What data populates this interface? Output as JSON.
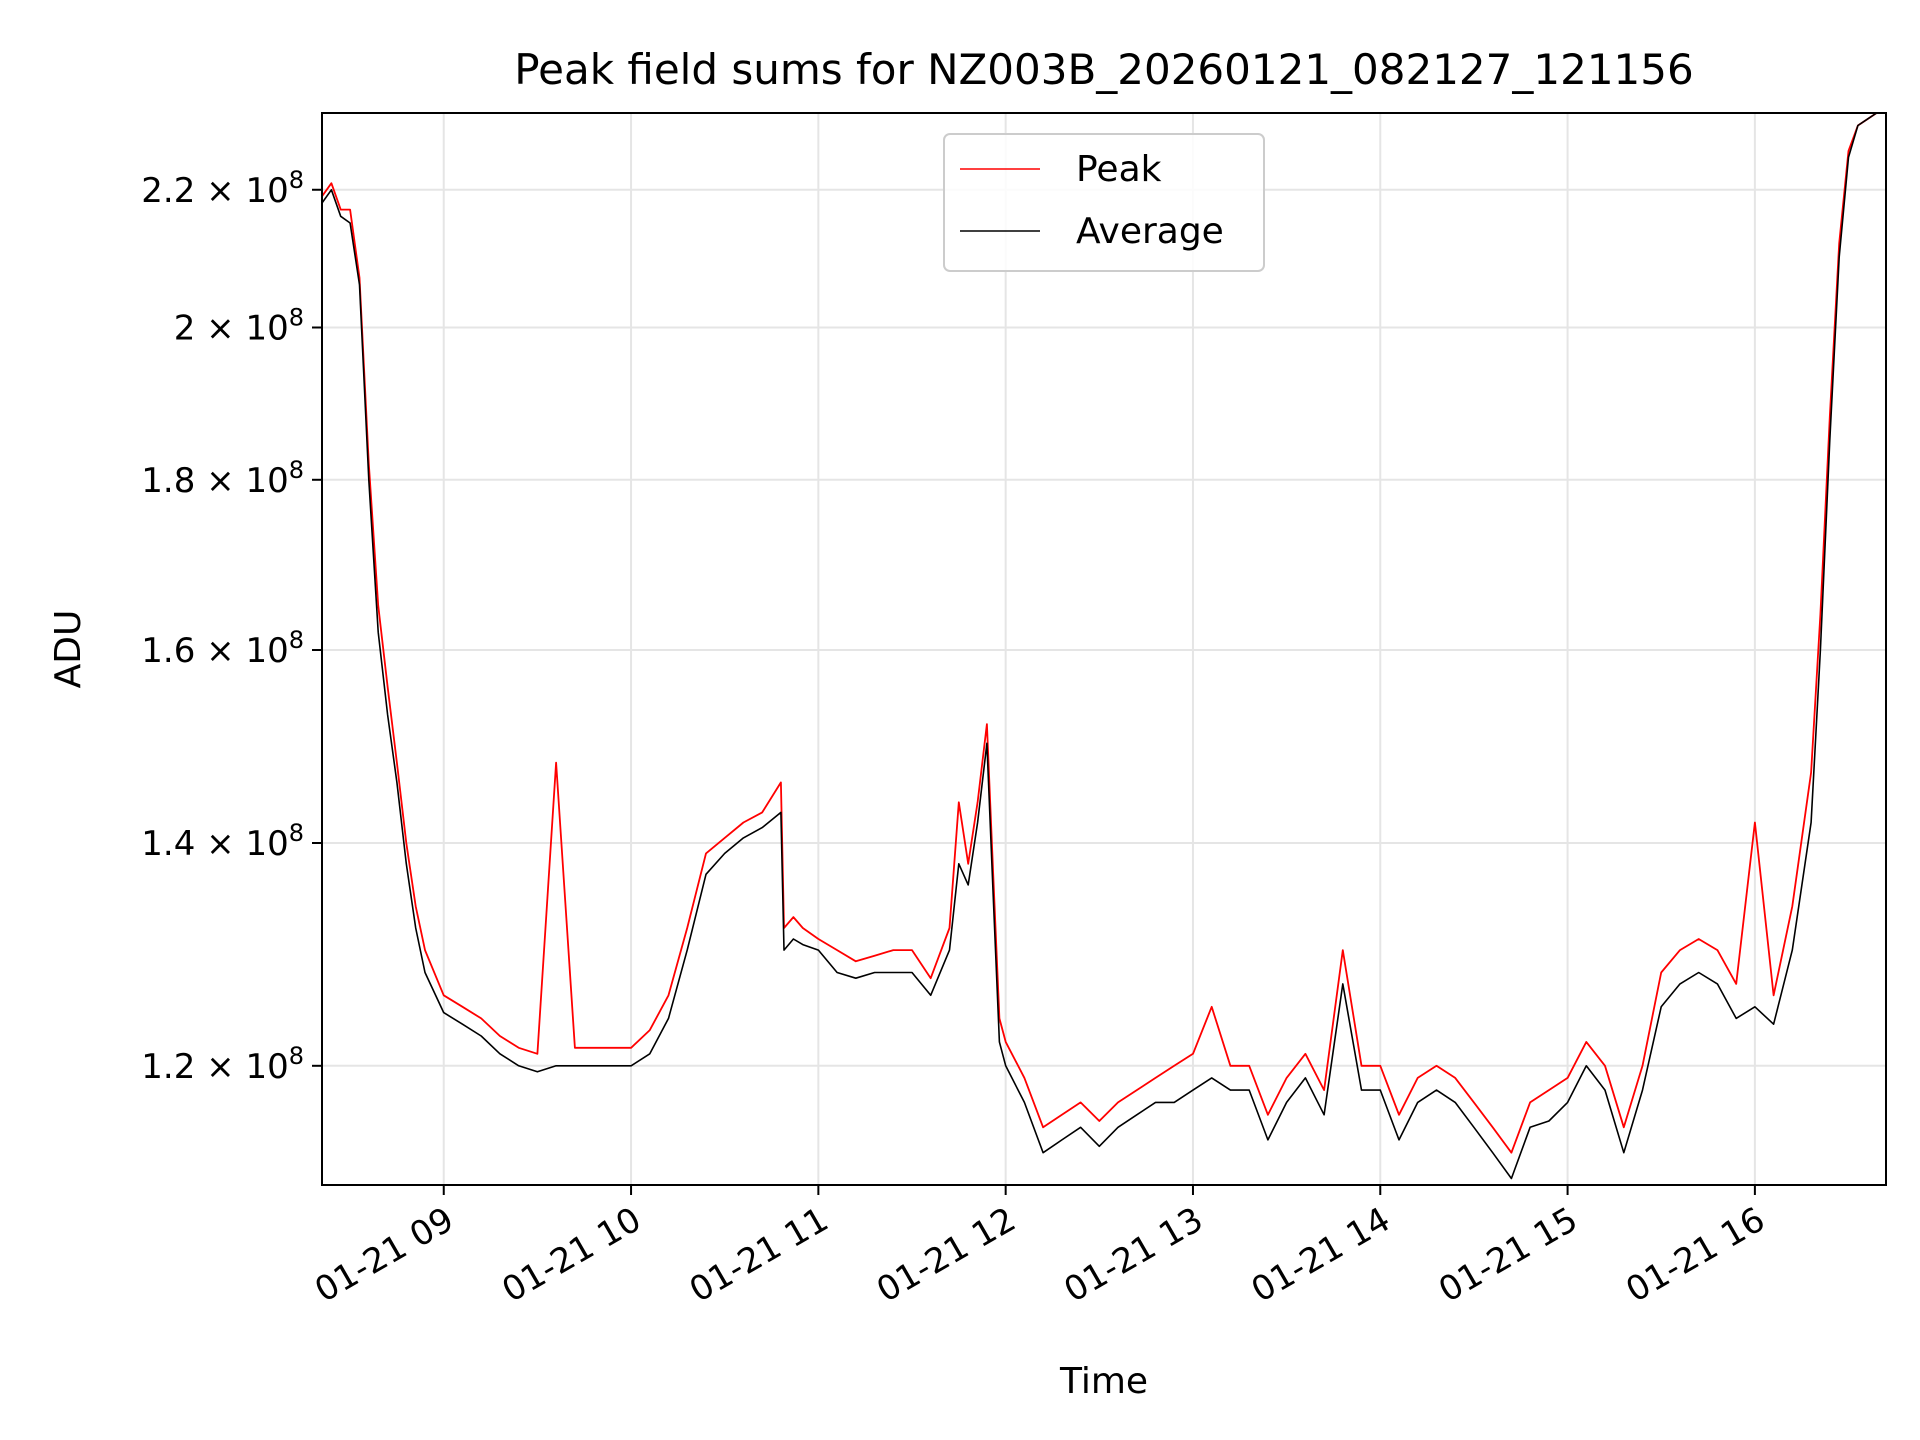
{
  "chart_data": {
    "type": "line",
    "title": "Peak field sums for NZ003B_20260121_082127_121156",
    "xlabel": "Time",
    "ylabel": "ADU",
    "y_scale": "log",
    "xlim": [
      "01-21 08:21",
      "01-21 16:42"
    ],
    "ylim": [
      110500000.0,
      232000000.0
    ],
    "grid": true,
    "legend_position": "upper center",
    "x_ticks": [
      {
        "value": "01-21 09:00",
        "label": "01-21 09"
      },
      {
        "value": "01-21 10:00",
        "label": "01-21 10"
      },
      {
        "value": "01-21 11:00",
        "label": "01-21 11"
      },
      {
        "value": "01-21 12:00",
        "label": "01-21 12"
      },
      {
        "value": "01-21 13:00",
        "label": "01-21 13"
      },
      {
        "value": "01-21 14:00",
        "label": "01-21 14"
      },
      {
        "value": "01-21 15:00",
        "label": "01-21 15"
      },
      {
        "value": "01-21 16:00",
        "label": "01-21 16"
      }
    ],
    "y_ticks": [
      {
        "value": 120000000.0,
        "mantissa": "1.2",
        "exp": "8"
      },
      {
        "value": 140000000.0,
        "mantissa": "1.4",
        "exp": "8"
      },
      {
        "value": 160000000.0,
        "mantissa": "1.6",
        "exp": "8"
      },
      {
        "value": 180000000.0,
        "mantissa": "1.8",
        "exp": "8"
      },
      {
        "value": 200000000.0,
        "mantissa": "2",
        "exp": "8"
      },
      {
        "value": 220000000.0,
        "mantissa": "2.2",
        "exp": "8"
      }
    ],
    "series": [
      {
        "name": "Average",
        "color": "#000000",
        "x": [
          "08:21",
          "08:24",
          "08:27",
          "08:30",
          "08:33",
          "08:36",
          "08:39",
          "08:42",
          "08:45",
          "08:48",
          "08:51",
          "08:54",
          "09:00",
          "09:06",
          "09:12",
          "09:18",
          "09:24",
          "09:30",
          "09:36",
          "09:42",
          "09:48",
          "09:54",
          "10:00",
          "10:06",
          "10:12",
          "10:18",
          "10:24",
          "10:30",
          "10:36",
          "10:42",
          "10:48",
          "10:49",
          "10:52",
          "10:55",
          "11:00",
          "11:06",
          "11:12",
          "11:18",
          "11:24",
          "11:30",
          "11:36",
          "11:42",
          "11:45",
          "11:48",
          "11:51",
          "11:54",
          "11:56",
          "11:58",
          "12:00",
          "12:06",
          "12:12",
          "12:18",
          "12:24",
          "12:30",
          "12:36",
          "12:42",
          "12:48",
          "12:54",
          "13:00",
          "13:06",
          "13:12",
          "13:18",
          "13:24",
          "13:30",
          "13:36",
          "13:42",
          "13:48",
          "13:54",
          "14:00",
          "14:06",
          "14:12",
          "14:18",
          "14:24",
          "14:30",
          "14:36",
          "14:42",
          "14:48",
          "14:54",
          "15:00",
          "15:06",
          "15:12",
          "15:18",
          "15:24",
          "15:30",
          "15:36",
          "15:42",
          "15:48",
          "15:54",
          "16:00",
          "16:06",
          "16:12",
          "16:18",
          "16:21",
          "16:24",
          "16:27",
          "16:30",
          "16:33",
          "16:36",
          "16:39",
          "16:42"
        ],
        "values": [
          218000000.0,
          220000000.0,
          216000000.0,
          215000000.0,
          206000000.0,
          180000000.0,
          162000000.0,
          153000000.0,
          146000000.0,
          138000000.0,
          132000000.0,
          128000000.0,
          124500000.0,
          123500000.0,
          122500000.0,
          121000000.0,
          120000000.0,
          119500000.0,
          120000000.0,
          120000000.0,
          120000000.0,
          120000000.0,
          120000000.0,
          121000000.0,
          124000000.0,
          130000000.0,
          137000000.0,
          139000000.0,
          140500000.0,
          141500000.0,
          143000000.0,
          130000000.0,
          131000000.0,
          130500000.0,
          130000000.0,
          128000000.0,
          127500000.0,
          128000000.0,
          128000000.0,
          128000000.0,
          126000000.0,
          130000000.0,
          138000000.0,
          136000000.0,
          142000000.0,
          150000000.0,
          135000000.0,
          122000000.0,
          120000000.0,
          117000000.0,
          113000000.0,
          114000000.0,
          115000000.0,
          113500000.0,
          115000000.0,
          116000000.0,
          117000000.0,
          117000000.0,
          118000000.0,
          119000000.0,
          118000000.0,
          118000000.0,
          114000000.0,
          117000000.0,
          119000000.0,
          116000000.0,
          127000000.0,
          118000000.0,
          118000000.0,
          114000000.0,
          117000000.0,
          118000000.0,
          117000000.0,
          115000000.0,
          113000000.0,
          111000000.0,
          115000000.0,
          115500000.0,
          117000000.0,
          120000000.0,
          118000000.0,
          113000000.0,
          118000000.0,
          125000000.0,
          127000000.0,
          128000000.0,
          127000000.0,
          124000000.0,
          125000000.0,
          123500000.0,
          130000000.0,
          142000000.0,
          160000000.0,
          185000000.0,
          210000000.0,
          225000000.0,
          230000000.0,
          231000000.0,
          232000000.0,
          232000000.0
        ]
      },
      {
        "name": "Peak",
        "color": "#ff0000",
        "x": [
          "08:21",
          "08:24",
          "08:27",
          "08:30",
          "08:33",
          "08:36",
          "08:39",
          "08:42",
          "08:45",
          "08:48",
          "08:51",
          "08:54",
          "09:00",
          "09:06",
          "09:12",
          "09:18",
          "09:24",
          "09:30",
          "09:36",
          "09:42",
          "09:48",
          "09:54",
          "10:00",
          "10:06",
          "10:12",
          "10:18",
          "10:24",
          "10:30",
          "10:36",
          "10:42",
          "10:48",
          "10:49",
          "10:52",
          "10:55",
          "11:00",
          "11:06",
          "11:12",
          "11:18",
          "11:24",
          "11:30",
          "11:36",
          "11:42",
          "11:45",
          "11:48",
          "11:51",
          "11:54",
          "11:56",
          "11:58",
          "12:00",
          "12:06",
          "12:12",
          "12:18",
          "12:24",
          "12:30",
          "12:36",
          "12:42",
          "12:48",
          "12:54",
          "13:00",
          "13:06",
          "13:12",
          "13:18",
          "13:24",
          "13:30",
          "13:36",
          "13:42",
          "13:48",
          "13:54",
          "14:00",
          "14:06",
          "14:12",
          "14:18",
          "14:24",
          "14:30",
          "14:36",
          "14:42",
          "14:48",
          "14:54",
          "15:00",
          "15:06",
          "15:12",
          "15:18",
          "15:24",
          "15:30",
          "15:36",
          "15:42",
          "15:48",
          "15:54",
          "16:00",
          "16:06",
          "16:12",
          "16:18",
          "16:21",
          "16:24",
          "16:27",
          "16:30",
          "16:33",
          "16:36",
          "16:39",
          "16:42"
        ],
        "values": [
          219000000.0,
          221000000.0,
          217000000.0,
          217000000.0,
          207000000.0,
          182000000.0,
          165000000.0,
          156000000.0,
          148000000.0,
          140000000.0,
          134000000.0,
          130000000.0,
          126000000.0,
          125000000.0,
          124000000.0,
          122500000.0,
          121500000.0,
          121000000.0,
          148000000.0,
          121500000.0,
          121500000.0,
          121500000.0,
          121500000.0,
          123000000.0,
          126000000.0,
          132000000.0,
          139000000.0,
          140500000.0,
          142000000.0,
          143000000.0,
          146000000.0,
          132000000.0,
          133000000.0,
          132000000.0,
          131000000.0,
          130000000.0,
          129000000.0,
          129500000.0,
          130000000.0,
          130000000.0,
          127500000.0,
          132000000.0,
          144000000.0,
          138000000.0,
          144000000.0,
          152000000.0,
          137000000.0,
          124000000.0,
          122000000.0,
          119000000.0,
          115000000.0,
          116000000.0,
          117000000.0,
          115500000.0,
          117000000.0,
          118000000.0,
          119000000.0,
          120000000.0,
          121000000.0,
          125000000.0,
          120000000.0,
          120000000.0,
          116000000.0,
          119000000.0,
          121000000.0,
          118000000.0,
          130000000.0,
          120000000.0,
          120000000.0,
          116000000.0,
          119000000.0,
          120000000.0,
          119000000.0,
          117000000.0,
          115000000.0,
          113000000.0,
          117000000.0,
          118000000.0,
          119000000.0,
          122000000.0,
          120000000.0,
          115000000.0,
          120000000.0,
          128000000.0,
          130000000.0,
          131000000.0,
          130000000.0,
          127000000.0,
          142000000.0,
          126000000.0,
          134000000.0,
          147000000.0,
          164000000.0,
          188000000.0,
          212000000.0,
          226000000.0,
          230000000.0,
          231000000.0,
          232000000.0,
          232000000.0
        ]
      }
    ]
  }
}
